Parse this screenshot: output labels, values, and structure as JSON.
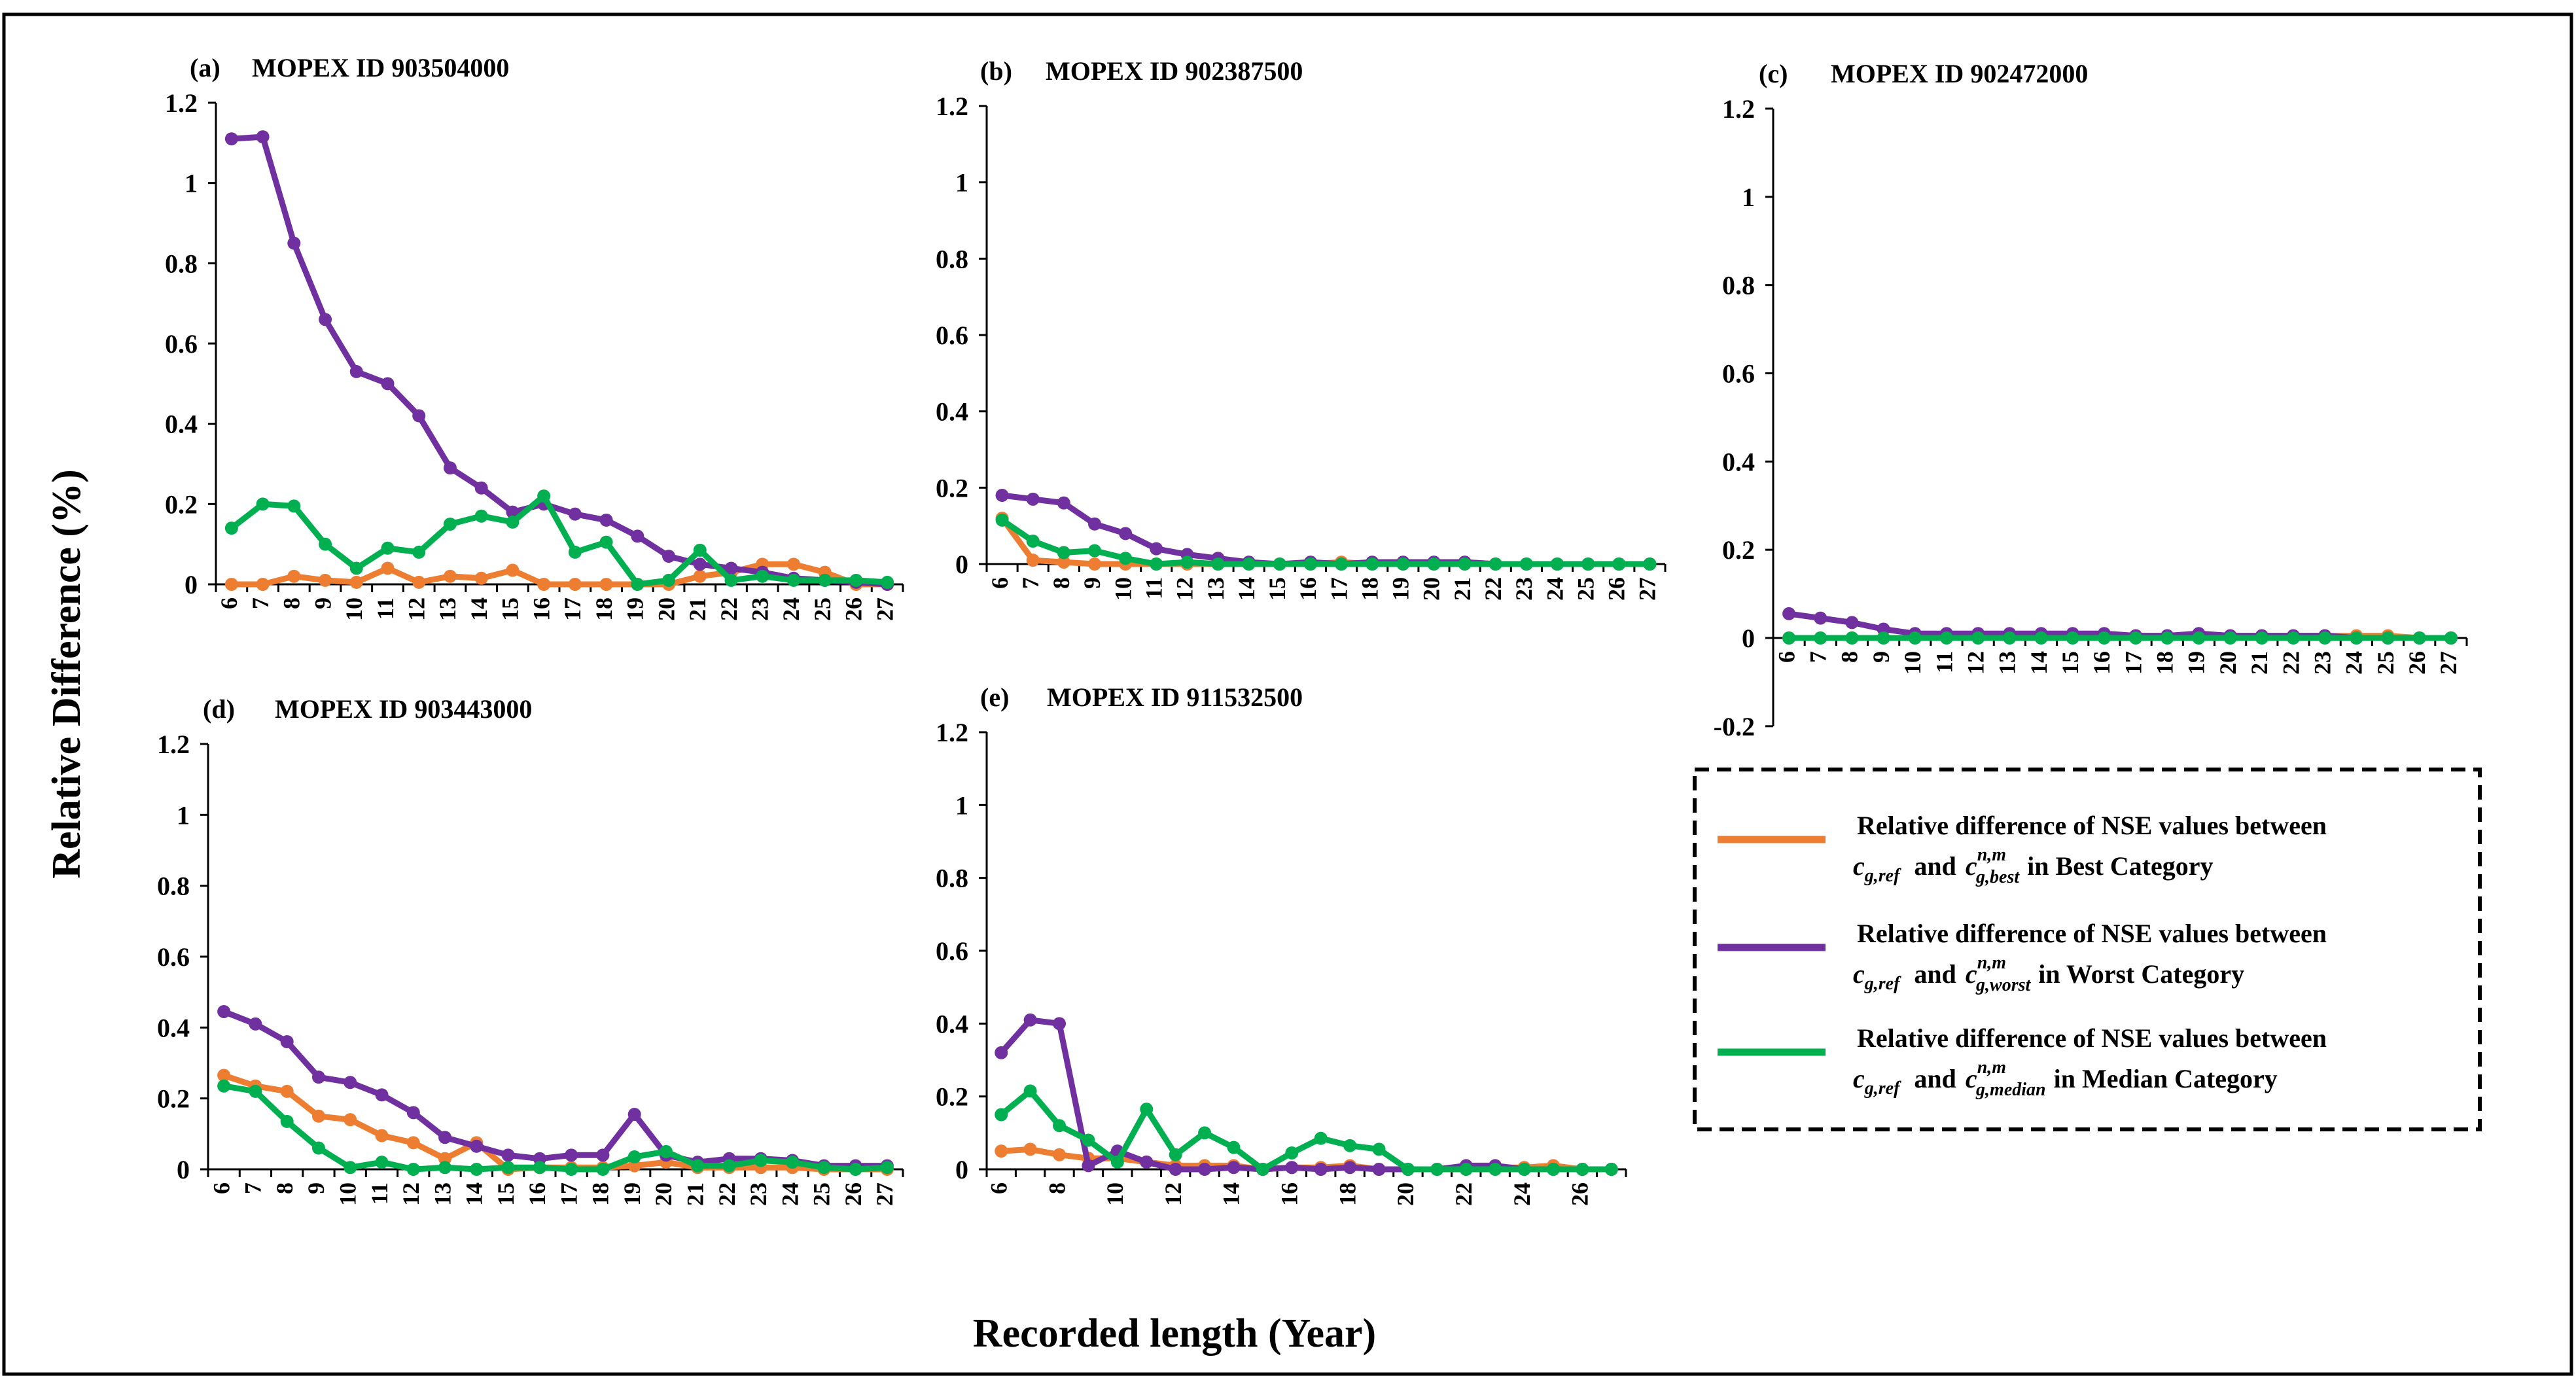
{
  "figure": {
    "ylabel": "Relative Difference (%)",
    "xlabel": "Recorded length (Year)"
  },
  "series_styles": {
    "best": {
      "color": "#ED7D31"
    },
    "worst": {
      "color": "#7030A0"
    },
    "median": {
      "color": "#00B050"
    }
  },
  "legend": {
    "placement": "bottom-right",
    "items": [
      {
        "series": "best",
        "line1": "Relative difference of NSE values between",
        "ref_base": "c",
        "ref_sub": "g,ref",
        "and": "and",
        "cmp_base": "c",
        "cmp_sub": "g,best",
        "cmp_sup": "n,m",
        "tail": "in Best Category"
      },
      {
        "series": "worst",
        "line1": "Relative difference of NSE values between",
        "ref_base": "c",
        "ref_sub": "g,ref",
        "and": "and",
        "cmp_base": "c",
        "cmp_sub": "g,worst",
        "cmp_sup": "n,m",
        "tail": "in Worst Category"
      },
      {
        "series": "median",
        "line1": "Relative difference of NSE values between",
        "ref_base": "c",
        "ref_sub": "g,ref",
        "and": "and",
        "cmp_base": "c",
        "cmp_sub": "g,median",
        "cmp_sup": "n,m",
        "tail": "in Median Category"
      }
    ]
  },
  "chart_data": [
    {
      "type": "line",
      "panel": "(a)",
      "title": "MOPEX ID 903504000",
      "x": [
        6,
        7,
        8,
        9,
        10,
        11,
        12,
        13,
        14,
        15,
        16,
        17,
        18,
        19,
        20,
        21,
        22,
        23,
        24,
        25,
        26,
        27
      ],
      "ylim": [
        0,
        1.2
      ],
      "yticks": [
        "0",
        "0.2",
        "0.4",
        "0.6",
        "0.8",
        "1",
        "1.2"
      ],
      "xticks": [
        "6",
        "7",
        "8",
        "9",
        "10",
        "11",
        "12",
        "13",
        "14",
        "15",
        "16",
        "17",
        "18",
        "19",
        "20",
        "21",
        "22",
        "23",
        "24",
        "25",
        "26",
        "27"
      ],
      "series": [
        {
          "name": "best",
          "values": [
            0,
            0,
            0.02,
            0.01,
            0.005,
            0.04,
            0.005,
            0.02,
            0.015,
            0.035,
            0,
            0,
            0,
            0,
            0,
            0.02,
            0.03,
            0.05,
            0.05,
            0.03,
            0,
            0
          ]
        },
        {
          "name": "worst",
          "values": [
            1.11,
            1.115,
            0.85,
            0.66,
            0.53,
            0.5,
            0.42,
            0.29,
            0.24,
            0.18,
            0.2,
            0.175,
            0.16,
            0.12,
            0.07,
            0.05,
            0.04,
            0.03,
            0.015,
            0.01,
            0.005,
            0
          ]
        },
        {
          "name": "median",
          "values": [
            0.14,
            0.2,
            0.195,
            0.1,
            0.04,
            0.09,
            0.08,
            0.15,
            0.17,
            0.155,
            0.22,
            0.08,
            0.105,
            0,
            0.01,
            0.085,
            0.01,
            0.02,
            0.01,
            0.01,
            0.01,
            0.005
          ]
        }
      ]
    },
    {
      "type": "line",
      "panel": "(b)",
      "title": "MOPEX ID 902387500",
      "x": [
        6,
        7,
        8,
        9,
        10,
        11,
        12,
        13,
        14,
        15,
        16,
        17,
        18,
        19,
        20,
        21,
        22,
        23,
        24,
        25,
        26,
        27
      ],
      "ylim": [
        0,
        1.2
      ],
      "yticks": [
        "0",
        "0.2",
        "0.4",
        "0.6",
        "0.8",
        "1",
        "1.2"
      ],
      "xticks": [
        "6",
        "7",
        "8",
        "9",
        "10",
        "11",
        "12",
        "13",
        "14",
        "15",
        "16",
        "17",
        "18",
        "19",
        "20",
        "21",
        "22",
        "23",
        "24",
        "25",
        "26",
        "27"
      ],
      "series": [
        {
          "name": "best",
          "values": [
            0.12,
            0.01,
            0.005,
            0,
            0,
            0,
            0,
            0,
            0,
            0,
            0,
            0.005,
            0,
            0,
            0,
            0.005,
            0,
            0,
            0,
            0,
            0,
            0
          ]
        },
        {
          "name": "worst",
          "values": [
            0.18,
            0.17,
            0.16,
            0.105,
            0.08,
            0.04,
            0.025,
            0.015,
            0.005,
            0,
            0.005,
            0,
            0.005,
            0.005,
            0.005,
            0.005,
            0,
            0,
            0,
            0,
            0,
            0
          ]
        },
        {
          "name": "median",
          "values": [
            0.115,
            0.06,
            0.03,
            0.035,
            0.015,
            0,
            0.005,
            0,
            0,
            0,
            0,
            0,
            0,
            0,
            0,
            0,
            0,
            0,
            0,
            0,
            0,
            0
          ]
        }
      ]
    },
    {
      "type": "line",
      "panel": "(c)",
      "title": "MOPEX ID 902472000",
      "x": [
        6,
        7,
        8,
        9,
        10,
        11,
        12,
        13,
        14,
        15,
        16,
        17,
        18,
        19,
        20,
        21,
        22,
        23,
        24,
        25,
        26,
        27
      ],
      "ylim": [
        -0.2,
        1.2
      ],
      "yticks": [
        "-0.2",
        "0",
        "0.2",
        "0.4",
        "0.6",
        "0.8",
        "1",
        "1.2"
      ],
      "xticks": [
        "6",
        "7",
        "8",
        "9",
        "10",
        "11",
        "12",
        "13",
        "14",
        "15",
        "16",
        "17",
        "18",
        "19",
        "20",
        "21",
        "22",
        "23",
        "24",
        "25",
        "26",
        "27"
      ],
      "series": [
        {
          "name": "best",
          "values": [
            0,
            0,
            0,
            0,
            0,
            0.005,
            0.005,
            0.005,
            0.005,
            0.005,
            0.005,
            0.005,
            0.005,
            0.005,
            0.005,
            0.005,
            0.005,
            0.005,
            0.005,
            0.005,
            0,
            0
          ]
        },
        {
          "name": "worst",
          "values": [
            0.055,
            0.045,
            0.035,
            0.02,
            0.01,
            0.01,
            0.01,
            0.01,
            0.01,
            0.01,
            0.01,
            0.005,
            0.005,
            0.01,
            0.005,
            0.005,
            0.005,
            0.005,
            0,
            0,
            0,
            0
          ]
        },
        {
          "name": "median",
          "values": [
            0,
            0,
            0,
            0,
            0,
            0,
            0,
            0,
            0,
            0,
            0,
            0,
            0,
            0,
            0,
            0,
            0,
            0,
            0,
            0,
            0,
            0
          ]
        }
      ]
    },
    {
      "type": "line",
      "panel": "(d)",
      "title": "MOPEX ID 903443000",
      "x": [
        6,
        7,
        8,
        9,
        10,
        11,
        12,
        13,
        14,
        15,
        16,
        17,
        18,
        19,
        20,
        21,
        22,
        23,
        24,
        25,
        26,
        27
      ],
      "ylim": [
        0,
        1.2
      ],
      "yticks": [
        "0",
        "0.2",
        "0.4",
        "0.6",
        "0.8",
        "1",
        "1.2"
      ],
      "xticks": [
        "6",
        "7",
        "8",
        "9",
        "10",
        "11",
        "12",
        "13",
        "14",
        "15",
        "16",
        "17",
        "18",
        "19",
        "20",
        "21",
        "22",
        "23",
        "24",
        "25",
        "26",
        "27"
      ],
      "series": [
        {
          "name": "best",
          "values": [
            0.265,
            0.235,
            0.22,
            0.15,
            0.14,
            0.095,
            0.075,
            0.03,
            0.075,
            0,
            0.005,
            0.005,
            0.005,
            0.01,
            0.02,
            0.005,
            0.005,
            0.005,
            0.005,
            0,
            0,
            0
          ]
        },
        {
          "name": "worst",
          "values": [
            0.445,
            0.41,
            0.36,
            0.26,
            0.245,
            0.21,
            0.16,
            0.09,
            0.065,
            0.04,
            0.03,
            0.04,
            0.04,
            0.155,
            0.04,
            0.02,
            0.03,
            0.03,
            0.025,
            0.01,
            0.01,
            0.01
          ]
        },
        {
          "name": "median",
          "values": [
            0.235,
            0.22,
            0.135,
            0.06,
            0.005,
            0.02,
            0,
            0.005,
            0,
            0.005,
            0.005,
            0,
            0,
            0.035,
            0.05,
            0.01,
            0.01,
            0.025,
            0.02,
            0.005,
            0,
            0.005
          ]
        }
      ]
    },
    {
      "type": "line",
      "panel": "(e)",
      "title": "MOPEX ID 911532500",
      "x": [
        6,
        7,
        8,
        9,
        10,
        11,
        12,
        13,
        14,
        15,
        16,
        17,
        18,
        19,
        20,
        21,
        22,
        23,
        24,
        25,
        26,
        27
      ],
      "ylim": [
        0,
        1.2
      ],
      "yticks": [
        "0",
        "0.2",
        "0.4",
        "0.6",
        "0.8",
        "1",
        "1.2"
      ],
      "xticks": [
        "6",
        "8",
        "10",
        "12",
        "14",
        "16",
        "18",
        "20",
        "22",
        "24",
        "26"
      ],
      "series": [
        {
          "name": "best",
          "values": [
            0.05,
            0.055,
            0.04,
            0.03,
            0.03,
            0.02,
            0.01,
            0.01,
            0.01,
            0,
            0.005,
            0.005,
            0.01,
            0,
            0,
            0,
            0,
            0.005,
            0.005,
            0.01,
            0,
            0
          ]
        },
        {
          "name": "worst",
          "values": [
            0.32,
            0.41,
            0.4,
            0.01,
            0.05,
            0.02,
            0,
            0,
            0.005,
            0,
            0.005,
            0,
            0.005,
            0,
            0,
            0,
            0.01,
            0.01,
            0,
            0,
            0,
            0
          ]
        },
        {
          "name": "median",
          "values": [
            0.15,
            0.215,
            0.12,
            0.08,
            0.02,
            0.165,
            0.04,
            0.1,
            0.06,
            0,
            0.045,
            0.085,
            0.065,
            0.055,
            0,
            0,
            0,
            0,
            0,
            0,
            0,
            0
          ]
        }
      ]
    }
  ]
}
